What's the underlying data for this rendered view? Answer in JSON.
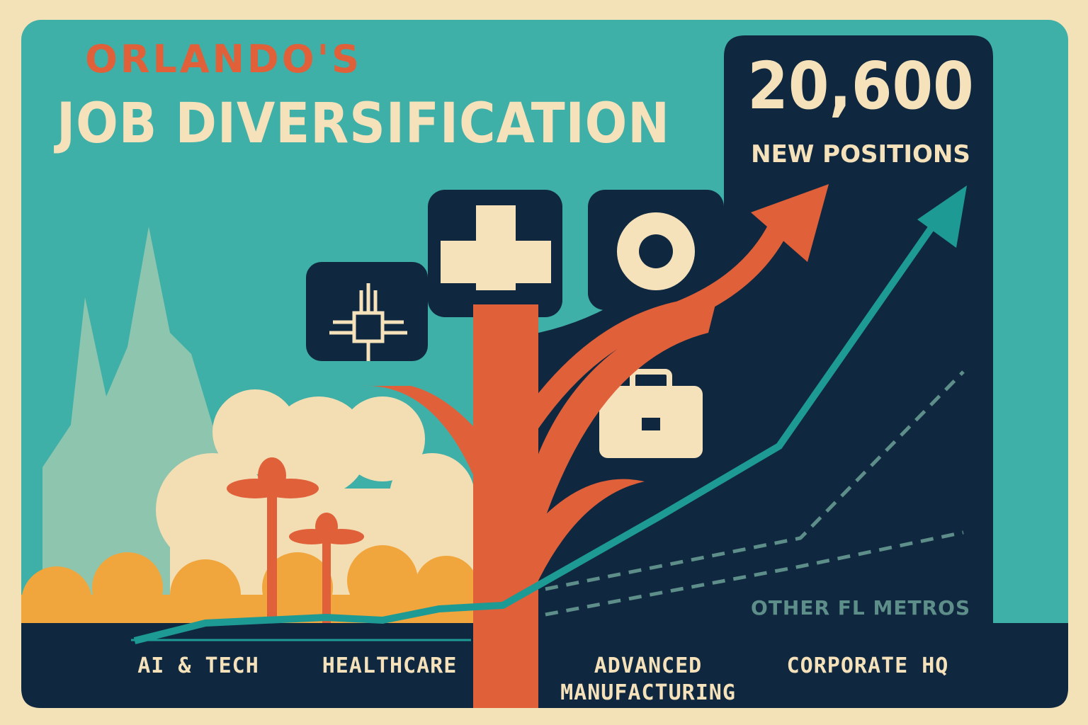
{
  "header": {
    "title_line1": "ORLANDO'S",
    "title_line2": "JOB DIVERSIFICATION"
  },
  "stat": {
    "value": "20,600",
    "label": "NEW POSITIONS"
  },
  "comparison_label": "OTHER FL METROS",
  "sectors": [
    "AI & TECH",
    "HEALTHCARE",
    "ADVANCED MANUFACTURING",
    "CORPORATE HQ"
  ]
}
